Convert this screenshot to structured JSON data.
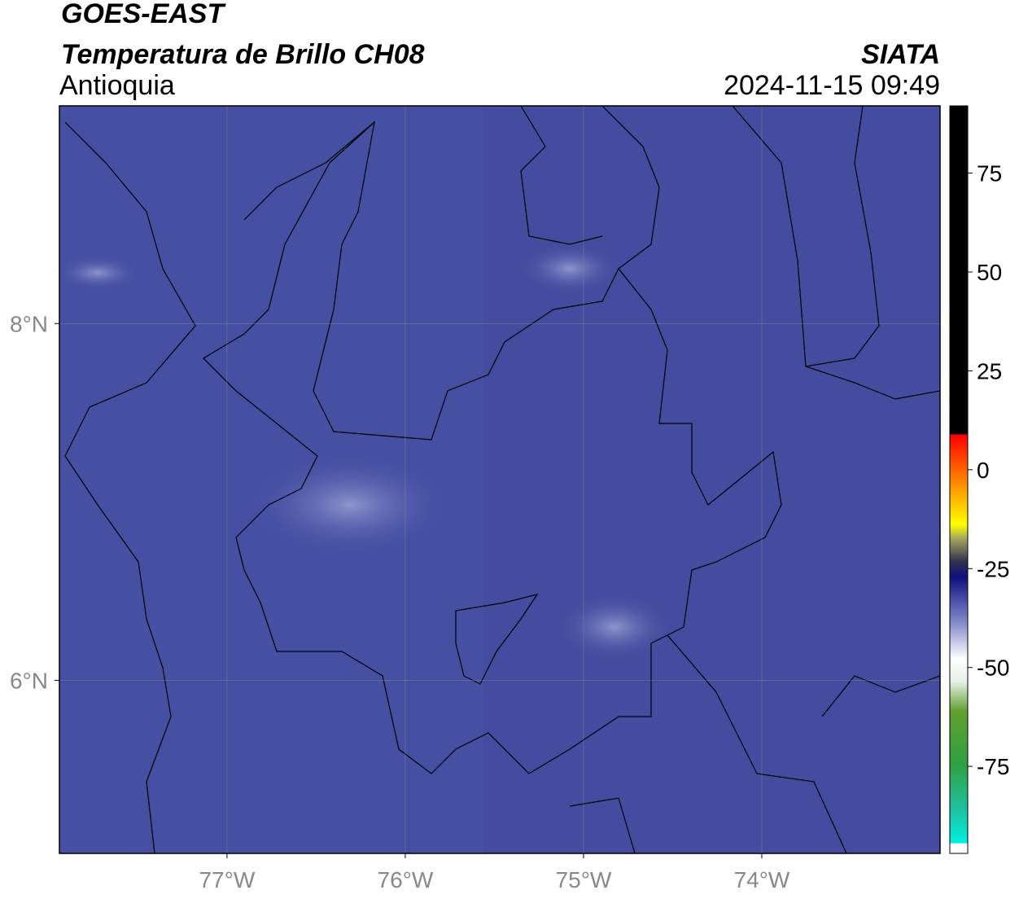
{
  "header": {
    "satellite": "GOES-EAST",
    "product": "Temperatura de Brillo CH08",
    "region": "Antioquia",
    "source": "SIATA",
    "datetime": "2024-11-15 09:49"
  },
  "map": {
    "xlim": [
      -77.94,
      -73.0
    ],
    "ylim": [
      5.03,
      9.22
    ],
    "xticks": [
      {
        "value": -77,
        "label": "77°W"
      },
      {
        "value": -76,
        "label": "76°W"
      },
      {
        "value": -75,
        "label": "75°W"
      },
      {
        "value": -74,
        "label": "74°W"
      }
    ],
    "yticks": [
      {
        "value": 8,
        "label": "8°N"
      },
      {
        "value": 6,
        "label": "6°N"
      }
    ],
    "grid": true
  },
  "colorbar": {
    "lim": [
      -97,
      92
    ],
    "ticks": [
      75,
      50,
      25,
      0,
      -25,
      -50,
      -75
    ]
  }
}
